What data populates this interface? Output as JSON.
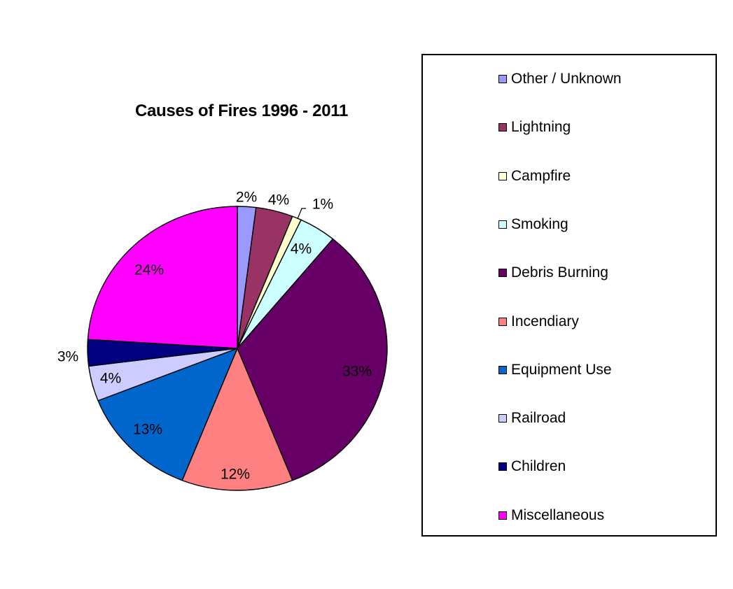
{
  "chart_data": {
    "type": "pie",
    "title": "Causes of Fires 1996 - 2011",
    "categories": [
      "Other / Unknown",
      "Lightning",
      "Campfire",
      "Smoking",
      "Debris Burning",
      "Incendiary",
      "Equipment Use",
      "Railroad",
      "Children",
      "Miscellaneous"
    ],
    "values": [
      2,
      4,
      1,
      4,
      33,
      12,
      13,
      4,
      3,
      24
    ],
    "labels": [
      "2%",
      "4%",
      "1%",
      "4%",
      "33%",
      "12%",
      "13%",
      "4%",
      "3%",
      "24%"
    ],
    "colors": [
      "#9999FF",
      "#993366",
      "#FFFFCC",
      "#CCFFFF",
      "#660066",
      "#FF8080",
      "#0066CC",
      "#CCCCFF",
      "#000080",
      "#FF00FF"
    ],
    "legend_position": "right",
    "value_unit": "percent"
  }
}
